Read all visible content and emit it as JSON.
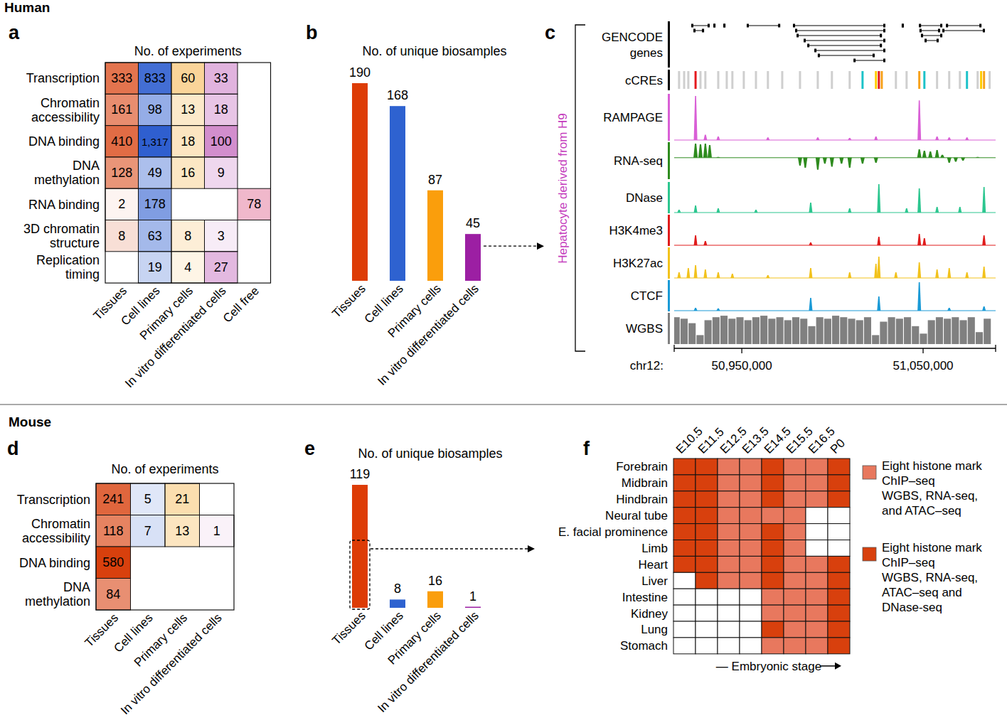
{
  "sections": [
    "Human",
    "Mouse"
  ],
  "chart_data": [
    {
      "panel_label": "a",
      "type": "heatmap",
      "title": "No. of experiments",
      "rows": [
        "Transcription",
        "Chromatin\naccessibility",
        "DNA binding",
        "DNA\nmethylation",
        "RNA binding",
        "3D chromatin\nstructure",
        "Replication\ntiming"
      ],
      "columns": [
        "Tissues",
        "Cell lines",
        "Primary cells",
        "In vitro differentiated cells",
        "Cell free"
      ],
      "colors": [
        "#d8400d",
        "#2f5fcf",
        "#f39c12",
        "#a8239e",
        "#e06a92"
      ],
      "values": [
        [
          333,
          833,
          60,
          33,
          null
        ],
        [
          161,
          98,
          13,
          18,
          null
        ],
        [
          410,
          1317,
          18,
          100,
          null
        ],
        [
          128,
          49,
          16,
          9,
          null
        ],
        [
          2,
          178,
          null,
          null,
          78
        ],
        [
          8,
          63,
          8,
          3,
          null
        ],
        [
          null,
          19,
          4,
          27,
          null
        ]
      ],
      "value_labels": [
        [
          "333",
          "833",
          "60",
          "33",
          null
        ],
        [
          "161",
          "98",
          "13",
          "18",
          null
        ],
        [
          "410",
          "1,317",
          "18",
          "100",
          null
        ],
        [
          "128",
          "49",
          "16",
          "9",
          null
        ],
        [
          "2",
          "178",
          null,
          null,
          "78"
        ],
        [
          "8",
          "63",
          "8",
          "3",
          null
        ],
        [
          null,
          "19",
          "4",
          "27",
          null
        ]
      ],
      "data_labels": true
    },
    {
      "panel_label": "b",
      "type": "bar",
      "title": "No. of unique biosamples",
      "categories": [
        "Tissues",
        "Cell lines",
        "Primary cells",
        "In vitro differentiated cells"
      ],
      "values": [
        190,
        168,
        87,
        45
      ],
      "colors": [
        "#dd3c06",
        "#2e62d0",
        "#fa9e0c",
        "#9c1fa3"
      ],
      "ylim": [
        0,
        190
      ],
      "data_labels": true,
      "tick_labels": "x"
    },
    {
      "panel_label": "c",
      "type": "genome_tracks",
      "sample_label": "Hepatocyte derived from H9",
      "x_label": "chr12:",
      "xlim": [
        50912700,
        51090000
      ],
      "xticks": [
        {
          "value": 50950000,
          "label": "50,950,000"
        },
        {
          "value": 51050000,
          "label": "51,050,000"
        }
      ],
      "tracks": [
        {
          "name": "GENCODE\ngenes",
          "type": "genes",
          "color": "#000000",
          "starts": [
            50922100,
            50923300,
            50934300,
            50939800,
            50952700,
            50978200,
            50979400,
            50980200,
            50984100,
            50986100,
            50990000,
            50991900,
            51011600,
            51038200,
            51047700,
            51048000,
            51048800,
            51050800,
            51060600,
            51062600
          ],
          "ends": [
            50932300,
            50929200,
            50935100,
            50940600,
            50971200,
            51029200,
            51029200,
            51027300,
            51029200,
            51027300,
            51029200,
            51023300,
            51029200,
            51039000,
            51060600,
            51059400,
            51060600,
            51058600,
            51084100,
            51082200
          ]
        },
        {
          "name": "cCREs",
          "type": "elements",
          "color": "#000000",
          "x": [
            50915400,
            50918200,
            50920500,
            50924500,
            50927200,
            50929900,
            50937000,
            50941700,
            50944800,
            50951100,
            50957800,
            50964400,
            50972300,
            50982100,
            50991900,
            50999700,
            51009500,
            51016600,
            51024000,
            51025600,
            51027200,
            51035000,
            51040900,
            51047900,
            51050700,
            51057700,
            51064400,
            51070300,
            51074200,
            51080100,
            51082000,
            51083600,
            51086700
          ],
          "colors": [
            "#cfcfcf",
            "#cfcfcf",
            "#cfcfcf",
            "#e5191e",
            "#cfcfcf",
            "#cfcfcf",
            "#cfcfcf",
            "#cfcfcf",
            "#cfcfcf",
            "#cfcfcf",
            "#cfcfcf",
            "#cfcfcf",
            "#cfcfcf",
            "#cfcfcf",
            "#cfcfcf",
            "#cfcfcf",
            "#cfcfcf",
            "#1cc2c9",
            "#ffcd00",
            "#e5191e",
            "#f7a21b",
            "#cfcfcf",
            "#cfcfcf",
            "#f7a21b",
            "#1cc2c9",
            "#cfcfcf",
            "#cfcfcf",
            "#cfcfcf",
            "#1cc2c9",
            "#cfcfcf",
            "#ffcd00",
            "#f7a21b",
            "#cfcfcf"
          ]
        },
        {
          "name": "RAMPAGE",
          "type": "signal",
          "color": "#d95fd6",
          "x": [
            50924500,
            50929900,
            50937000,
            50964400,
            50991900,
            51009500,
            51024000,
            51047900,
            51057700,
            51064400,
            51074200
          ],
          "values": [
            1.0,
            0.12,
            0.08,
            0.06,
            0.06,
            0.05,
            0.08,
            0.9,
            0.08,
            0.06,
            0.06
          ]
        },
        {
          "name": "RNA-seq",
          "type": "signal",
          "color": "#2e8b1e",
          "x": [
            50924500,
            50927200,
            50929900,
            50932300,
            50937000,
            50982100,
            50985000,
            50991900,
            50995800,
            50999700,
            51005000,
            51009500,
            51016600,
            51024000,
            51047900,
            51050700,
            51054000,
            51057700,
            51060600,
            51064400,
            51068000,
            51072000,
            51080100
          ],
          "values": [
            1.0,
            0.95,
            1.0,
            0.9,
            0.05,
            -0.4,
            -0.5,
            -0.6,
            -0.3,
            -0.45,
            -0.3,
            -0.5,
            -0.3,
            -0.25,
            0.6,
            0.5,
            0.45,
            0.55,
            0.2,
            -0.25,
            -0.2,
            -0.15,
            0.05
          ]
        },
        {
          "name": "DNase",
          "type": "signal",
          "color": "#2cc68f",
          "x": [
            50915400,
            50924500,
            50937000,
            50957800,
            50988000,
            51009500,
            51025600,
            51040900,
            51047900,
            51057700,
            51070300,
            51083600
          ],
          "values": [
            0.1,
            0.25,
            0.15,
            0.1,
            0.35,
            0.15,
            1.0,
            0.15,
            0.85,
            0.2,
            0.2,
            0.9
          ]
        },
        {
          "name": "H3K4me3",
          "type": "signal",
          "color": "#e01b1b",
          "x": [
            50924500,
            50929900,
            50988000,
            51025600,
            51047900,
            51050700,
            51083600
          ],
          "values": [
            0.35,
            0.15,
            0.1,
            0.3,
            0.4,
            0.25,
            0.35
          ]
        },
        {
          "name": "H3K27ac",
          "type": "signal",
          "color": "#f2c21b",
          "x": [
            50915400,
            50920500,
            50924500,
            50929900,
            50937000,
            50944800,
            50964400,
            50988000,
            51009500,
            51024000,
            51025600,
            51035000,
            51047900,
            51057700,
            51064400,
            51074200,
            51083600
          ],
          "values": [
            0.2,
            0.35,
            0.45,
            0.3,
            0.2,
            0.15,
            0.1,
            0.35,
            0.2,
            0.5,
            0.75,
            0.2,
            0.55,
            0.3,
            0.35,
            0.2,
            0.4
          ]
        },
        {
          "name": "CTCF",
          "type": "signal",
          "color": "#1a9ad6",
          "x": [
            50924500,
            50937000,
            50988000,
            51025600,
            51047900,
            51064400,
            51083600
          ],
          "values": [
            0.1,
            0.08,
            0.45,
            0.5,
            1.0,
            0.1,
            0.15
          ]
        },
        {
          "name": "WGBS",
          "type": "methylation",
          "color": "#808080",
          "x": [
            50914000,
            50918400,
            50922800,
            50927200,
            50931600,
            50936000,
            50940400,
            50944800,
            50949200,
            50953600,
            50958000,
            50962400,
            50966800,
            50971200,
            50975600,
            50980000,
            50984400,
            50988800,
            50993200,
            50997600,
            51002000,
            51006400,
            51010800,
            51015200,
            51019600,
            51024000,
            51028400,
            51032800,
            51037200,
            51041600,
            51046000,
            51050400,
            51054800,
            51059200,
            51063600,
            51068000,
            51072400,
            51076800,
            51081200,
            51085600
          ],
          "values": [
            0.9,
            0.85,
            0.7,
            0.3,
            0.8,
            0.9,
            0.95,
            0.85,
            0.9,
            0.8,
            0.9,
            0.95,
            0.85,
            0.9,
            0.8,
            0.9,
            0.85,
            0.6,
            0.9,
            0.85,
            0.95,
            0.9,
            0.85,
            0.8,
            0.9,
            0.3,
            0.75,
            0.9,
            0.85,
            0.9,
            0.6,
            0.35,
            0.8,
            0.9,
            0.85,
            0.9,
            0.8,
            0.9,
            0.4,
            0.85
          ]
        }
      ]
    },
    {
      "panel_label": "d",
      "type": "heatmap",
      "title": "No. of experiments",
      "rows": [
        "Transcription",
        "Chromatin\naccessibility",
        "DNA binding",
        "DNA\nmethylation"
      ],
      "columns": [
        "Tissues",
        "Cell lines",
        "Primary cells",
        "In vitro differentiated cells"
      ],
      "colors": [
        "#d8400d",
        "#2f5fcf",
        "#f39c12",
        "#a8239e"
      ],
      "values": [
        [
          241,
          5,
          21,
          null
        ],
        [
          118,
          7,
          13,
          1
        ],
        [
          580,
          null,
          null,
          null
        ],
        [
          84,
          null,
          null,
          null
        ]
      ],
      "value_labels": [
        [
          "241",
          "5",
          "21",
          null
        ],
        [
          "118",
          "7",
          "13",
          "1"
        ],
        [
          "580",
          null,
          null,
          null
        ],
        [
          "84",
          null,
          null,
          null
        ]
      ],
      "data_labels": true
    },
    {
      "panel_label": "e",
      "type": "bar",
      "title": "No. of unique biosamples",
      "categories": [
        "Tissues",
        "Cell lines",
        "Primary cells",
        "In vitro differentiated cells"
      ],
      "values": [
        119,
        8,
        16,
        1
      ],
      "colors": [
        "#dd3c06",
        "#2e62d0",
        "#fa9e0c",
        "#9c1fa3"
      ],
      "ylim": [
        0,
        119
      ],
      "data_labels": true,
      "tick_labels": "x"
    },
    {
      "panel_label": "f",
      "type": "heatmap",
      "x_label": "— Embryonic stage",
      "legend": "right",
      "rows": [
        "Forebrain",
        "Midbrain",
        "Hindbrain",
        "Neural tube",
        "E. facial prominence",
        "Limb",
        "Heart",
        "Liver",
        "Intestine",
        "Kidney",
        "Lung",
        "Stomach"
      ],
      "columns": [
        "E10.5",
        "E11.5",
        "E12.5",
        "E13.5",
        "E14.5",
        "E15.5",
        "E16.5",
        "P0"
      ],
      "series": [
        {
          "name": "Eight histone mark\nChIP–seq\nWGBS, RNA-seq,\nand ATAC–seq",
          "color": "#e8785e"
        },
        {
          "name": "Eight histone mark\nChIP–seq\nWGBS, RNA-seq,\nATAC–seq and\nDNase-seq",
          "color": "#d8400d"
        }
      ],
      "cells": [
        [
          1,
          1,
          0,
          0,
          1,
          0,
          0,
          1
        ],
        [
          1,
          1,
          0,
          0,
          1,
          0,
          0,
          1
        ],
        [
          1,
          1,
          0,
          0,
          1,
          0,
          0,
          1
        ],
        [
          1,
          1,
          0,
          0,
          0,
          0,
          null,
          null
        ],
        [
          1,
          1,
          0,
          0,
          1,
          0,
          null,
          null
        ],
        [
          1,
          1,
          0,
          0,
          1,
          0,
          null,
          null
        ],
        [
          1,
          1,
          0,
          0,
          1,
          0,
          0,
          1
        ],
        [
          null,
          1,
          0,
          0,
          1,
          0,
          0,
          1
        ],
        [
          null,
          null,
          null,
          null,
          0,
          0,
          0,
          1
        ],
        [
          null,
          null,
          null,
          null,
          0,
          0,
          0,
          1
        ],
        [
          null,
          null,
          null,
          null,
          1,
          0,
          0,
          1
        ],
        [
          null,
          null,
          null,
          null,
          0,
          0,
          0,
          1
        ]
      ]
    }
  ]
}
